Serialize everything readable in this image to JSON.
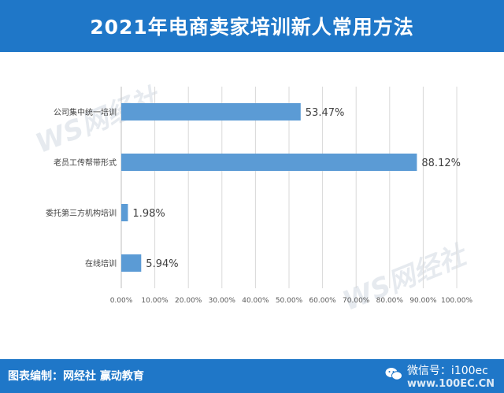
{
  "header": {
    "title": "2021年电商卖家培训新人常用方法"
  },
  "footer": {
    "credit": "图表编制：网经社  赢动教育",
    "wechat_handle": "微信号：i100ec",
    "site": "www.100EC.CN"
  },
  "watermark": {
    "brand": "WS网经社",
    "site": "WWW.100EC.CN"
  },
  "colors": {
    "header_bg": "#1f77c8",
    "bar": "#5b9bd5",
    "grid": "#d9d9d9"
  },
  "chart_data": {
    "type": "bar",
    "orientation": "horizontal",
    "title": "2021年电商卖家培训新人常用方法",
    "categories": [
      "公司集中统一培训",
      "老员工传帮带形式",
      "委托第三方机构培训",
      "在线培训"
    ],
    "values": [
      53.47,
      88.12,
      1.98,
      5.94
    ],
    "value_labels": [
      "53.47%",
      "88.12%",
      "1.98%",
      "5.94%"
    ],
    "xlim": [
      0,
      100
    ],
    "x_ticks": [
      "0.00%",
      "10.00%",
      "20.00%",
      "30.00%",
      "40.00%",
      "50.00%",
      "60.00%",
      "70.00%",
      "80.00%",
      "90.00%",
      "100.00%"
    ],
    "grid": true,
    "legend": "none"
  }
}
